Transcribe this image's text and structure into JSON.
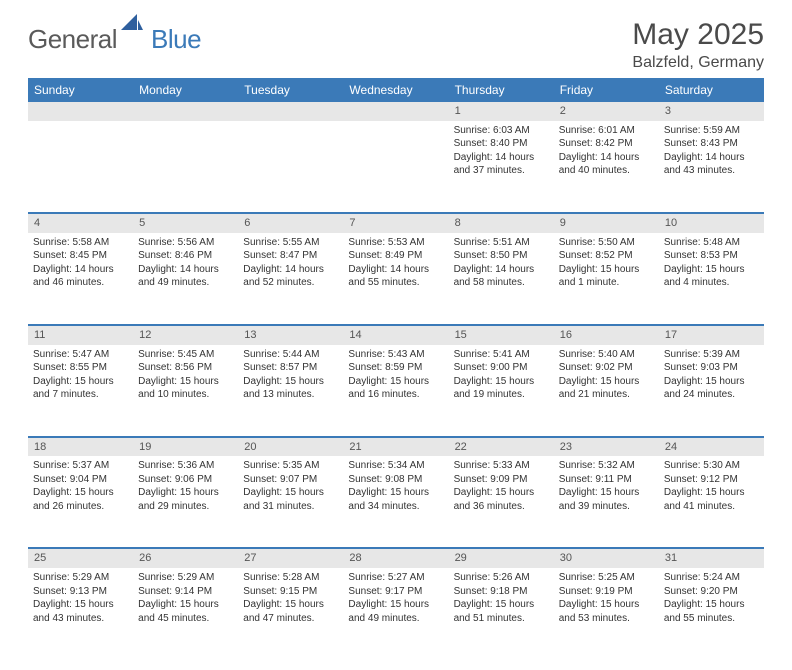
{
  "brand": {
    "part1": "General",
    "part2": "Blue"
  },
  "title": "May 2025",
  "location": "Balzfeld, Germany",
  "colors": {
    "header_bg": "#3b7ab8",
    "header_text": "#ffffff",
    "daynum_bg": "#e7e7e7",
    "daynum_text": "#555555",
    "row_border": "#3b7ab8",
    "page_bg": "#ffffff",
    "body_text": "#333333",
    "title_text": "#4a4a4a"
  },
  "day_headers": [
    "Sunday",
    "Monday",
    "Tuesday",
    "Wednesday",
    "Thursday",
    "Friday",
    "Saturday"
  ],
  "weeks": [
    {
      "nums": [
        "",
        "",
        "",
        "",
        "1",
        "2",
        "3"
      ],
      "cells": [
        null,
        null,
        null,
        null,
        {
          "sunrise": "Sunrise: 6:03 AM",
          "sunset": "Sunset: 8:40 PM",
          "dl1": "Daylight: 14 hours",
          "dl2": "and 37 minutes."
        },
        {
          "sunrise": "Sunrise: 6:01 AM",
          "sunset": "Sunset: 8:42 PM",
          "dl1": "Daylight: 14 hours",
          "dl2": "and 40 minutes."
        },
        {
          "sunrise": "Sunrise: 5:59 AM",
          "sunset": "Sunset: 8:43 PM",
          "dl1": "Daylight: 14 hours",
          "dl2": "and 43 minutes."
        }
      ]
    },
    {
      "nums": [
        "4",
        "5",
        "6",
        "7",
        "8",
        "9",
        "10"
      ],
      "cells": [
        {
          "sunrise": "Sunrise: 5:58 AM",
          "sunset": "Sunset: 8:45 PM",
          "dl1": "Daylight: 14 hours",
          "dl2": "and 46 minutes."
        },
        {
          "sunrise": "Sunrise: 5:56 AM",
          "sunset": "Sunset: 8:46 PM",
          "dl1": "Daylight: 14 hours",
          "dl2": "and 49 minutes."
        },
        {
          "sunrise": "Sunrise: 5:55 AM",
          "sunset": "Sunset: 8:47 PM",
          "dl1": "Daylight: 14 hours",
          "dl2": "and 52 minutes."
        },
        {
          "sunrise": "Sunrise: 5:53 AM",
          "sunset": "Sunset: 8:49 PM",
          "dl1": "Daylight: 14 hours",
          "dl2": "and 55 minutes."
        },
        {
          "sunrise": "Sunrise: 5:51 AM",
          "sunset": "Sunset: 8:50 PM",
          "dl1": "Daylight: 14 hours",
          "dl2": "and 58 minutes."
        },
        {
          "sunrise": "Sunrise: 5:50 AM",
          "sunset": "Sunset: 8:52 PM",
          "dl1": "Daylight: 15 hours",
          "dl2": "and 1 minute."
        },
        {
          "sunrise": "Sunrise: 5:48 AM",
          "sunset": "Sunset: 8:53 PM",
          "dl1": "Daylight: 15 hours",
          "dl2": "and 4 minutes."
        }
      ]
    },
    {
      "nums": [
        "11",
        "12",
        "13",
        "14",
        "15",
        "16",
        "17"
      ],
      "cells": [
        {
          "sunrise": "Sunrise: 5:47 AM",
          "sunset": "Sunset: 8:55 PM",
          "dl1": "Daylight: 15 hours",
          "dl2": "and 7 minutes."
        },
        {
          "sunrise": "Sunrise: 5:45 AM",
          "sunset": "Sunset: 8:56 PM",
          "dl1": "Daylight: 15 hours",
          "dl2": "and 10 minutes."
        },
        {
          "sunrise": "Sunrise: 5:44 AM",
          "sunset": "Sunset: 8:57 PM",
          "dl1": "Daylight: 15 hours",
          "dl2": "and 13 minutes."
        },
        {
          "sunrise": "Sunrise: 5:43 AM",
          "sunset": "Sunset: 8:59 PM",
          "dl1": "Daylight: 15 hours",
          "dl2": "and 16 minutes."
        },
        {
          "sunrise": "Sunrise: 5:41 AM",
          "sunset": "Sunset: 9:00 PM",
          "dl1": "Daylight: 15 hours",
          "dl2": "and 19 minutes."
        },
        {
          "sunrise": "Sunrise: 5:40 AM",
          "sunset": "Sunset: 9:02 PM",
          "dl1": "Daylight: 15 hours",
          "dl2": "and 21 minutes."
        },
        {
          "sunrise": "Sunrise: 5:39 AM",
          "sunset": "Sunset: 9:03 PM",
          "dl1": "Daylight: 15 hours",
          "dl2": "and 24 minutes."
        }
      ]
    },
    {
      "nums": [
        "18",
        "19",
        "20",
        "21",
        "22",
        "23",
        "24"
      ],
      "cells": [
        {
          "sunrise": "Sunrise: 5:37 AM",
          "sunset": "Sunset: 9:04 PM",
          "dl1": "Daylight: 15 hours",
          "dl2": "and 26 minutes."
        },
        {
          "sunrise": "Sunrise: 5:36 AM",
          "sunset": "Sunset: 9:06 PM",
          "dl1": "Daylight: 15 hours",
          "dl2": "and 29 minutes."
        },
        {
          "sunrise": "Sunrise: 5:35 AM",
          "sunset": "Sunset: 9:07 PM",
          "dl1": "Daylight: 15 hours",
          "dl2": "and 31 minutes."
        },
        {
          "sunrise": "Sunrise: 5:34 AM",
          "sunset": "Sunset: 9:08 PM",
          "dl1": "Daylight: 15 hours",
          "dl2": "and 34 minutes."
        },
        {
          "sunrise": "Sunrise: 5:33 AM",
          "sunset": "Sunset: 9:09 PM",
          "dl1": "Daylight: 15 hours",
          "dl2": "and 36 minutes."
        },
        {
          "sunrise": "Sunrise: 5:32 AM",
          "sunset": "Sunset: 9:11 PM",
          "dl1": "Daylight: 15 hours",
          "dl2": "and 39 minutes."
        },
        {
          "sunrise": "Sunrise: 5:30 AM",
          "sunset": "Sunset: 9:12 PM",
          "dl1": "Daylight: 15 hours",
          "dl2": "and 41 minutes."
        }
      ]
    },
    {
      "nums": [
        "25",
        "26",
        "27",
        "28",
        "29",
        "30",
        "31"
      ],
      "cells": [
        {
          "sunrise": "Sunrise: 5:29 AM",
          "sunset": "Sunset: 9:13 PM",
          "dl1": "Daylight: 15 hours",
          "dl2": "and 43 minutes."
        },
        {
          "sunrise": "Sunrise: 5:29 AM",
          "sunset": "Sunset: 9:14 PM",
          "dl1": "Daylight: 15 hours",
          "dl2": "and 45 minutes."
        },
        {
          "sunrise": "Sunrise: 5:28 AM",
          "sunset": "Sunset: 9:15 PM",
          "dl1": "Daylight: 15 hours",
          "dl2": "and 47 minutes."
        },
        {
          "sunrise": "Sunrise: 5:27 AM",
          "sunset": "Sunset: 9:17 PM",
          "dl1": "Daylight: 15 hours",
          "dl2": "and 49 minutes."
        },
        {
          "sunrise": "Sunrise: 5:26 AM",
          "sunset": "Sunset: 9:18 PM",
          "dl1": "Daylight: 15 hours",
          "dl2": "and 51 minutes."
        },
        {
          "sunrise": "Sunrise: 5:25 AM",
          "sunset": "Sunset: 9:19 PM",
          "dl1": "Daylight: 15 hours",
          "dl2": "and 53 minutes."
        },
        {
          "sunrise": "Sunrise: 5:24 AM",
          "sunset": "Sunset: 9:20 PM",
          "dl1": "Daylight: 15 hours",
          "dl2": "and 55 minutes."
        }
      ]
    }
  ]
}
